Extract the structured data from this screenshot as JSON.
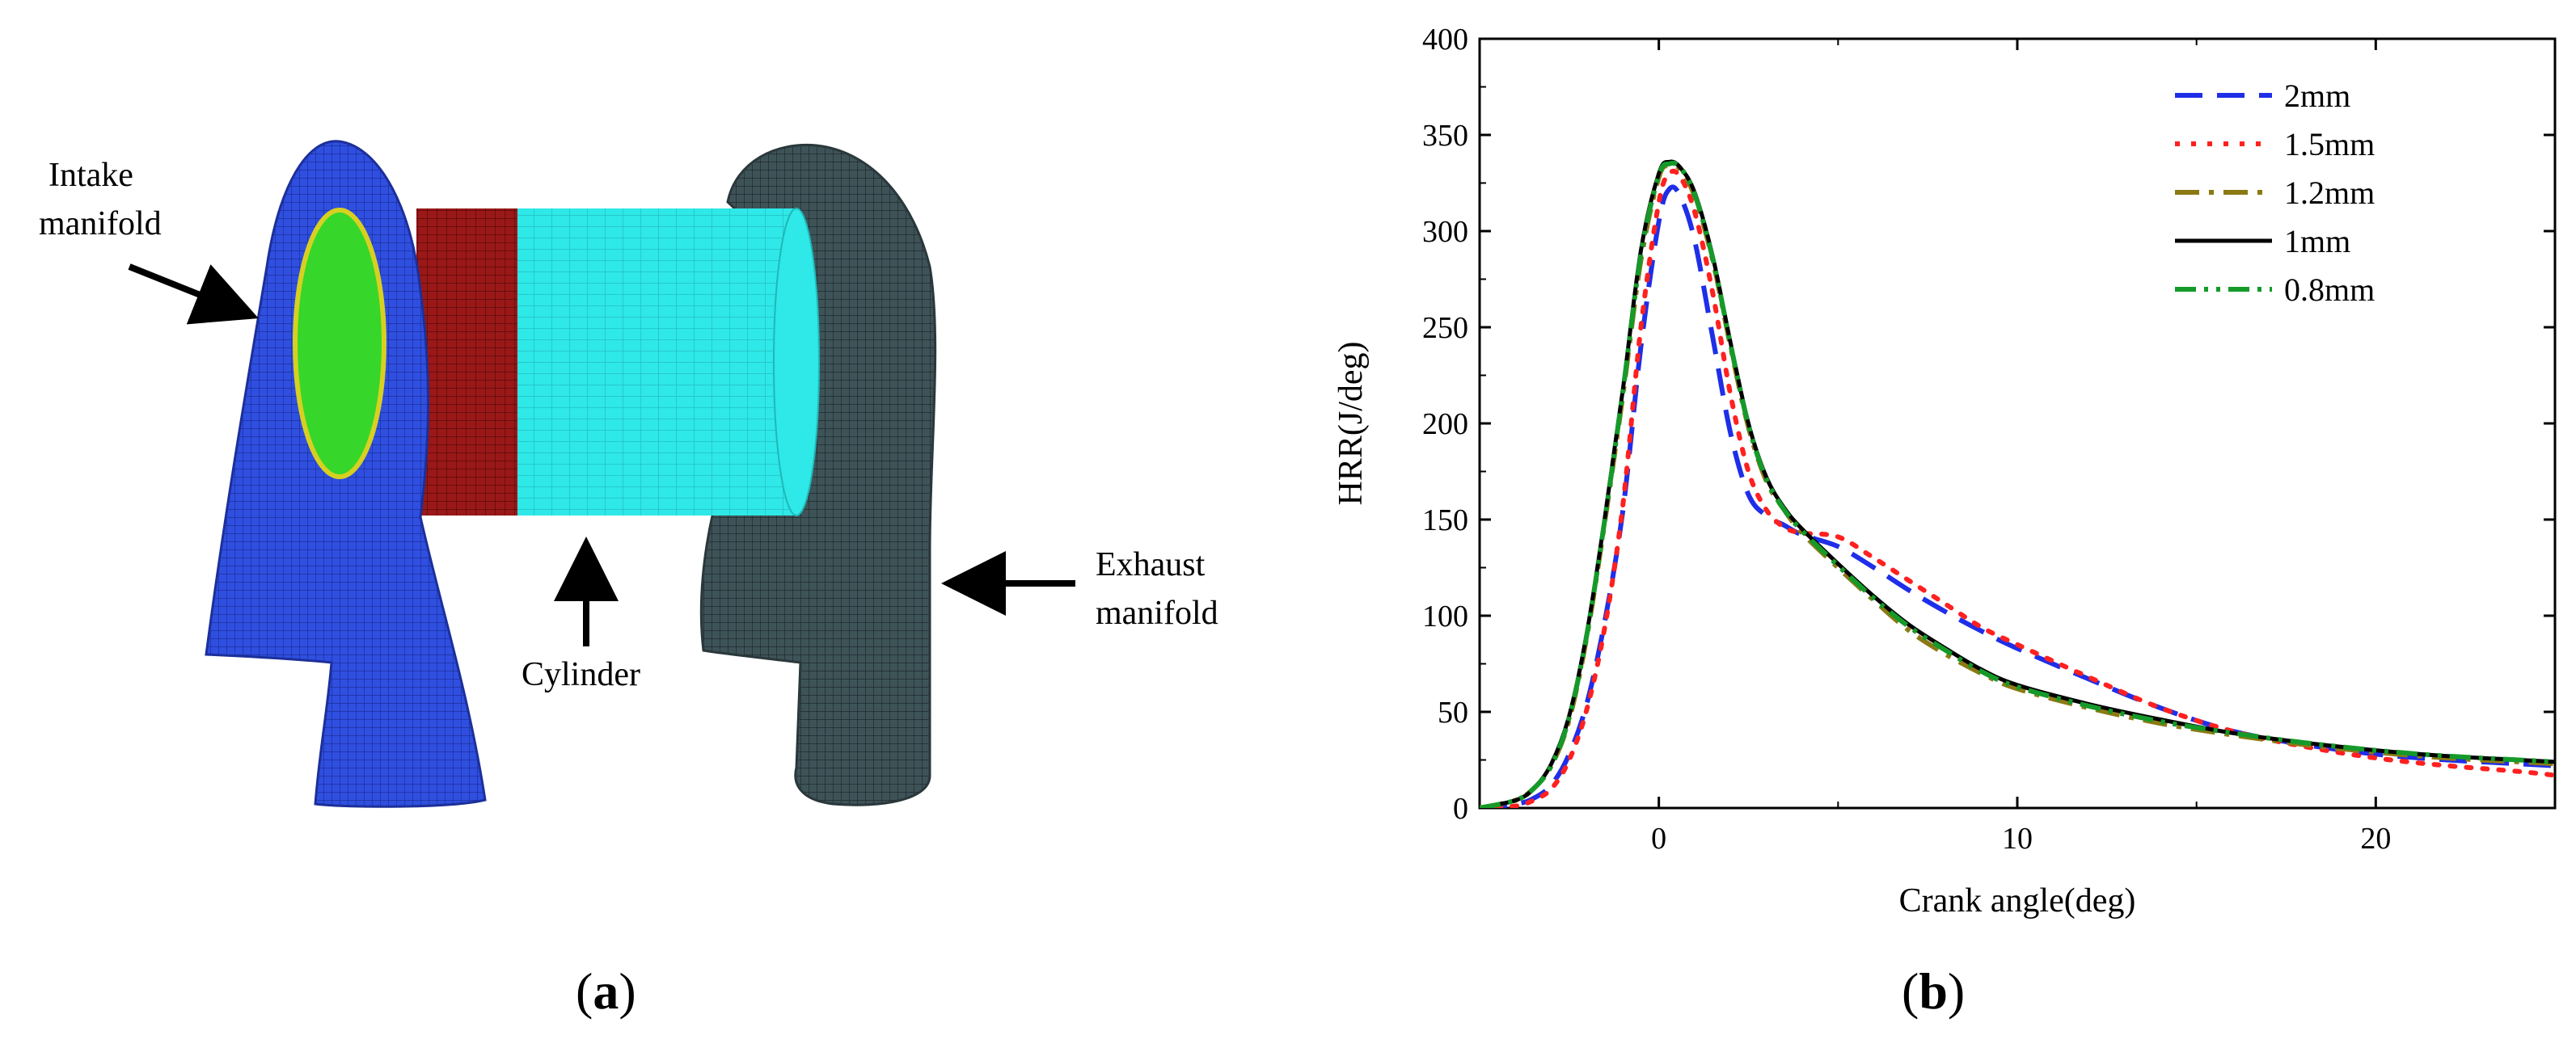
{
  "panel_a": {
    "caption": "(a)",
    "labels": {
      "intake_line1": "Intake",
      "intake_line2": "manifold",
      "cylinder": "Cylinder",
      "exhaust_line1": "Exhaust",
      "exhaust_line2": "manifold"
    },
    "colors": {
      "intake_mesh": "#2f4fe0",
      "valve_face": "#37d62a",
      "cylinder_dark": "#9a1818",
      "cylinder_light": "#2fe8e8",
      "exhaust_mesh": "#3e5358"
    }
  },
  "panel_b": {
    "caption": "(b)"
  },
  "chart_data": {
    "type": "line",
    "xlabel": "Crank angle(deg)",
    "ylabel": "HRR(J/deg)",
    "xlim": [
      -5,
      25
    ],
    "ylim": [
      0,
      400
    ],
    "x_ticks": [
      0,
      10,
      20
    ],
    "y_ticks": [
      0,
      50,
      100,
      150,
      200,
      250,
      300,
      350,
      400
    ],
    "legend_position": "top-right",
    "series": [
      {
        "name": "2mm",
        "color": "#1f2ee8",
        "dash": "long-dash",
        "x": [
          -5,
          -4,
          -3.5,
          -3,
          -2.5,
          -2,
          -1.5,
          -1,
          -0.5,
          0,
          0.3,
          0.6,
          1,
          1.5,
          2,
          2.5,
          3,
          3.5,
          4,
          5,
          6,
          7,
          8,
          9,
          10,
          12,
          14,
          16,
          18,
          20,
          22,
          24,
          25
        ],
        "y": [
          0,
          2,
          5,
          12,
          28,
          55,
          98,
          155,
          240,
          305,
          322,
          318,
          295,
          245,
          195,
          163,
          152,
          147,
          142,
          136,
          125,
          113,
          102,
          92,
          83,
          67,
          52,
          40,
          33,
          28,
          25,
          23,
          22
        ]
      },
      {
        "name": "1.5mm",
        "color": "#ff2020",
        "dash": "dot",
        "x": [
          -5,
          -4,
          -3.5,
          -3,
          -2.5,
          -2,
          -1.5,
          -1,
          -0.5,
          0,
          0.3,
          0.6,
          1,
          1.5,
          2,
          2.5,
          3,
          3.5,
          4,
          5,
          6,
          7,
          8,
          9,
          10,
          12,
          14,
          16,
          18,
          20,
          22,
          24,
          25
        ],
        "y": [
          0,
          1,
          4,
          10,
          25,
          52,
          95,
          158,
          250,
          315,
          330,
          328,
          310,
          268,
          215,
          175,
          155,
          146,
          143,
          141,
          130,
          118,
          106,
          94,
          85,
          68,
          52,
          40,
          32,
          26,
          22,
          19,
          17
        ]
      },
      {
        "name": "1.2mm",
        "color": "#8b7a14",
        "dash": "dash-dot",
        "x": [
          -5,
          -4,
          -3.5,
          -3,
          -2.5,
          -2,
          -1.5,
          -1,
          -0.5,
          0,
          0.3,
          0.6,
          1,
          1.5,
          2,
          2.5,
          3,
          3.5,
          4,
          5,
          6,
          7,
          8,
          9,
          10,
          12,
          14,
          16,
          18,
          20,
          22,
          24,
          25
        ],
        "y": [
          0,
          4,
          10,
          22,
          46,
          90,
          150,
          215,
          285,
          328,
          334,
          332,
          318,
          285,
          240,
          198,
          170,
          155,
          143,
          125,
          108,
          92,
          80,
          70,
          62,
          52,
          44,
          38,
          33,
          29,
          26,
          24,
          23
        ]
      },
      {
        "name": "1mm",
        "color": "#000000",
        "dash": "solid",
        "x": [
          -5,
          -4,
          -3.5,
          -3,
          -2.5,
          -2,
          -1.5,
          -1,
          -0.5,
          0,
          0.3,
          0.6,
          1,
          1.5,
          2,
          2.5,
          3,
          3.5,
          4,
          5,
          6,
          7,
          8,
          9,
          10,
          12,
          14,
          16,
          18,
          20,
          22,
          24,
          25
        ],
        "y": [
          0,
          4,
          10,
          23,
          48,
          92,
          152,
          218,
          290,
          330,
          336,
          333,
          320,
          287,
          242,
          200,
          172,
          156,
          145,
          127,
          110,
          95,
          83,
          72,
          64,
          54,
          46,
          39,
          34,
          30,
          27,
          25,
          24
        ]
      },
      {
        "name": "0.8mm",
        "color": "#159a2a",
        "dash": "dash-dot-dot",
        "x": [
          -5,
          -4,
          -3.5,
          -3,
          -2.5,
          -2,
          -1.5,
          -1,
          -0.5,
          0,
          0.3,
          0.6,
          1,
          1.5,
          2,
          2.5,
          3,
          3.5,
          4,
          5,
          6,
          7,
          8,
          9,
          10,
          12,
          14,
          16,
          18,
          20,
          22,
          24,
          25
        ],
        "y": [
          0,
          4,
          10,
          22,
          47,
          91,
          151,
          217,
          288,
          329,
          335,
          333,
          319,
          286,
          241,
          199,
          171,
          155,
          144,
          126,
          109,
          94,
          82,
          71,
          63,
          53,
          45,
          39,
          34,
          30,
          27,
          25,
          24
        ]
      }
    ]
  }
}
